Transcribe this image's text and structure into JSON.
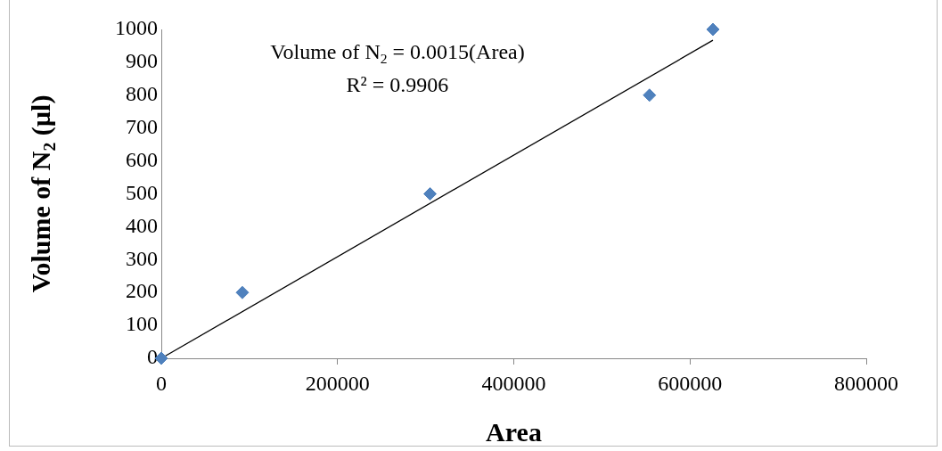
{
  "chart_data": {
    "type": "scatter",
    "xlabel": "Area",
    "ylabel": "Volume of N$_{2}$ (µl)",
    "annotations": [
      "Volume of N$_{2}$ = 0.0015(Area)",
      "R² = 0.9906"
    ],
    "series": [
      {
        "type": "scatter",
        "color": "#4f81bd",
        "x": [
          0,
          92000,
          305000,
          554000,
          626000
        ],
        "values": [
          0,
          200,
          500,
          800,
          1000
        ],
        "marker": "diamond"
      },
      {
        "type": "line",
        "color": "#000000",
        "x": [
          0,
          626000
        ],
        "values": [
          0,
          967
        ],
        "marker": "none",
        "line_style": "solid"
      }
    ],
    "xlim": [
      0,
      800000
    ],
    "xticks": [
      0,
      200000,
      400000,
      600000,
      800000
    ],
    "ylim": [
      0,
      1000
    ],
    "yticks": [
      0,
      100,
      200,
      300,
      400,
      500,
      600,
      700,
      800,
      900,
      1000
    ],
    "grid": false,
    "legend": false
  }
}
